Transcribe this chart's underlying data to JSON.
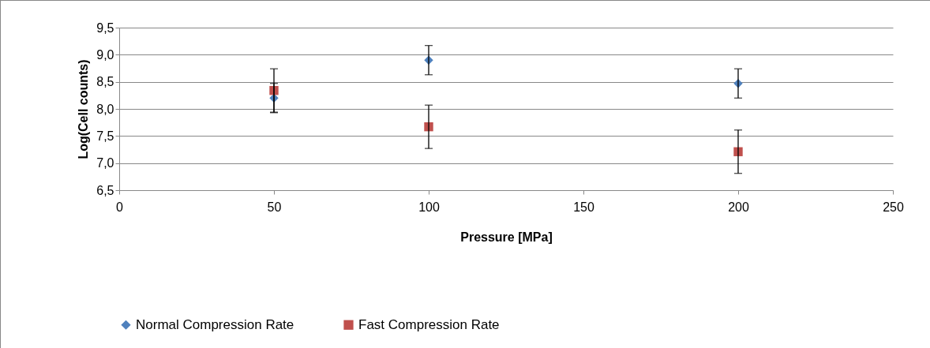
{
  "chart_data": {
    "type": "scatter",
    "xlabel": "Pressure [MPa]",
    "ylabel": "Log(Cell counts)",
    "xlim": [
      0,
      250
    ],
    "xticks": [
      0,
      50,
      100,
      150,
      200,
      250
    ],
    "ylim": [
      6.5,
      9.5
    ],
    "yticks": [
      {
        "value": 6.5,
        "label": "6,5"
      },
      {
        "value": 7.0,
        "label": "7,0"
      },
      {
        "value": 7.5,
        "label": "7,5"
      },
      {
        "value": 8.0,
        "label": "8,0"
      },
      {
        "value": 8.5,
        "label": "8,5"
      },
      {
        "value": 9.0,
        "label": "9,0"
      },
      {
        "value": 9.5,
        "label": "9,5"
      }
    ],
    "grid": "y",
    "legend": "bottom",
    "series": [
      {
        "name": "Normal Compression Rate",
        "color": "#4f81bd",
        "marker": "diamond",
        "x": [
          50,
          100,
          200
        ],
        "values": [
          8.2,
          8.9,
          8.47
        ],
        "errors": [
          0.27,
          0.27,
          0.27
        ]
      },
      {
        "name": "Fast Compression Rate",
        "color": "#c0504d",
        "marker": "square",
        "x": [
          50,
          100,
          200
        ],
        "values": [
          8.34,
          7.67,
          7.21
        ],
        "errors": [
          0.4,
          0.4,
          0.4
        ]
      }
    ]
  }
}
